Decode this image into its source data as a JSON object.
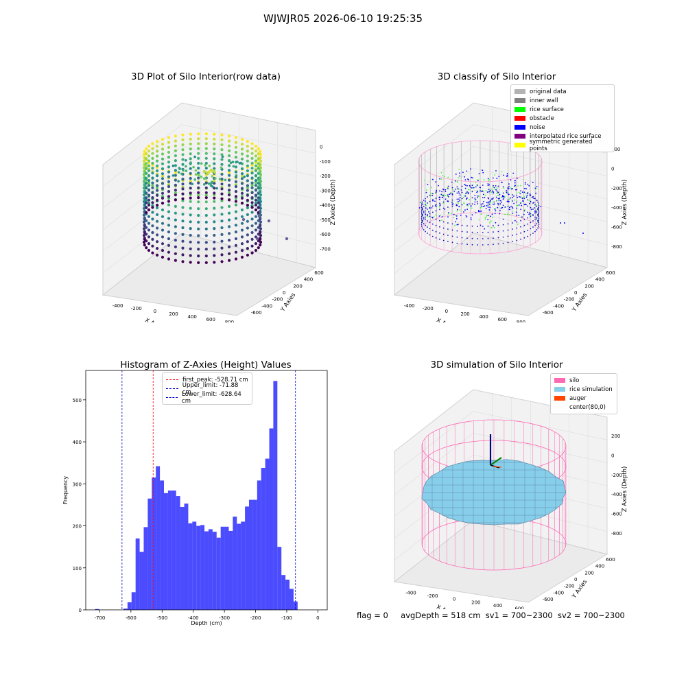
{
  "figure_title": "WJWJR05 2026-06-10 19:25:35",
  "footer": {
    "flag": "flag = 0",
    "avg_depth": "avgDepth = 518 cm",
    "sv1": "sv1 = 700~2300",
    "sv2": "sv2 = 700~2300"
  },
  "chart_data": [
    {
      "id": "raw",
      "type": "scatter",
      "title": "3D Plot of Silo Interior(row data)",
      "xlabel": "X Axies",
      "ylabel": "Y Axies",
      "zlabel": "Z Axies (Depth)",
      "xticks": [
        "-400",
        "-200",
        "0",
        "200",
        "400",
        "600",
        "800"
      ],
      "yticks": [
        "-600",
        "-400",
        "-200",
        "0",
        "200",
        "400",
        "600"
      ],
      "zticks": [
        "0",
        "-100",
        "-200",
        "-300",
        "-400",
        "-500",
        "-600",
        "-700"
      ],
      "xlim": [
        -500,
        900
      ],
      "ylim": [
        -650,
        650
      ],
      "zlim": [
        -750,
        50
      ],
      "colormap": "viridis",
      "silo": {
        "center_x": 80,
        "center_y": 0,
        "radius": 560,
        "top": -80,
        "bottom": -700
      }
    },
    {
      "id": "classify",
      "type": "scatter",
      "title": "3D classify of Silo Interior",
      "xlabel": "X Axies",
      "ylabel": "Y Axies",
      "zlabel": "Z Axies (Depth)",
      "xticks": [
        "-400",
        "-200",
        "0",
        "200",
        "400",
        "600",
        "800"
      ],
      "yticks": [
        "-600",
        "-400",
        "-200",
        "0",
        "200",
        "400",
        "600"
      ],
      "zticks": [
        "200",
        "0",
        "-200",
        "-400",
        "-600",
        "-800"
      ],
      "xlim": [
        -500,
        900
      ],
      "ylim": [
        -650,
        650
      ],
      "zlim": [
        -900,
        300
      ],
      "legend": [
        {
          "label": "original data",
          "color": "#b3b3b3"
        },
        {
          "label": "inner wall",
          "color": "#808080"
        },
        {
          "label": "rice surface",
          "color": "#00ff00"
        },
        {
          "label": "obstacle",
          "color": "#ff0000"
        },
        {
          "label": "noise",
          "color": "#0000ff"
        },
        {
          "label": "interpolated rice surface",
          "color": "#800080"
        },
        {
          "label": "symmetric generated points",
          "color": "#ffff00"
        }
      ],
      "silo": {
        "center_x": 80,
        "center_y": 0,
        "radius": 560,
        "top": 200,
        "bottom": -800
      }
    },
    {
      "id": "histogram",
      "type": "bar",
      "title": "Histogram of Z-Axies (Height) Values",
      "xlabel": "Depth (cm)",
      "ylabel": "Frequency",
      "xlim": [
        -745,
        30
      ],
      "ylim": [
        0,
        570
      ],
      "xticks": [
        -700,
        -600,
        -500,
        -400,
        -300,
        -200,
        -100,
        0
      ],
      "yticks": [
        0,
        100,
        200,
        300,
        400,
        500
      ],
      "bar_color": "#0000ff",
      "bin_edges_start": -715,
      "bin_width": 13,
      "values": [
        2,
        0,
        0,
        0,
        0,
        0,
        0,
        3,
        18,
        42,
        170,
        138,
        197,
        265,
        315,
        342,
        308,
        278,
        284,
        284,
        271,
        245,
        253,
        206,
        210,
        200,
        202,
        187,
        192,
        186,
        172,
        198,
        198,
        188,
        222,
        205,
        210,
        246,
        262,
        262,
        308,
        338,
        360,
        432,
        545,
        150,
        83,
        72,
        50,
        20
      ],
      "vlines": [
        {
          "label": "first_peak: -528.71 cm",
          "value": -528.71,
          "color": "#ff0000"
        },
        {
          "label": "Upper_limit: -71.88 cm",
          "value": -71.88,
          "color": "#0000cc"
        },
        {
          "label": "Lower_limit: -628.64 cm",
          "value": -628.64,
          "color": "#0000cc"
        }
      ]
    },
    {
      "id": "simulation",
      "type": "surface",
      "title": "3D simulation of Silo Interior",
      "xlabel": "X Axies",
      "ylabel": "Y Axies",
      "zlabel": "Z Axies (Depth)",
      "xticks": [
        "-400",
        "-200",
        "0",
        "200",
        "400",
        "600"
      ],
      "yticks": [
        "-600",
        "-400",
        "-200",
        "0",
        "200",
        "400",
        "600"
      ],
      "zticks": [
        "200",
        "0",
        "-200",
        "-400",
        "-600",
        "-800"
      ],
      "xlim": [
        -500,
        700
      ],
      "ylim": [
        -650,
        650
      ],
      "zlim": [
        -850,
        300
      ],
      "legend": [
        {
          "label": "silo",
          "color": "#ff69b4"
        },
        {
          "label": "rice simulation",
          "color": "#87ceeb"
        },
        {
          "label": "auger",
          "color": "#ff4500"
        },
        {
          "label": "center(80,0)",
          "color": ""
        }
      ],
      "silo": {
        "center_x": 80,
        "center_y": 0,
        "radius": 560,
        "top": 200,
        "bottom": -800
      },
      "rice_surface_depth": -518
    }
  ]
}
